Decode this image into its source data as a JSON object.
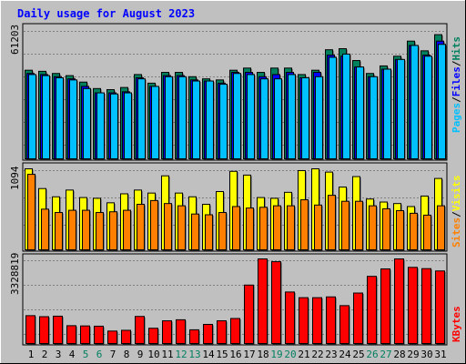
{
  "title": "Daily usage for August 2023",
  "colors": {
    "background": "#c0c0c0",
    "plot": "#c0c0c0",
    "title": "#0000ff",
    "hits": "#00805c",
    "files": "#0000ff",
    "pages": "#00c0ff",
    "visits": "#ffff00",
    "sites": "#ff8000",
    "kbytes": "#ff0000",
    "weekend_label": "#008060",
    "weekday_label": "#000000"
  },
  "chart_data": [
    {
      "type": "bar",
      "panel": "hits-files-pages",
      "ymax_label": "61203",
      "ylim": [
        0,
        61203
      ],
      "categories": [
        "1",
        "2",
        "3",
        "4",
        "5",
        "6",
        "7",
        "8",
        "9",
        "10",
        "11",
        "12",
        "13",
        "14",
        "15",
        "16",
        "17",
        "18",
        "19",
        "20",
        "21",
        "22",
        "23",
        "24",
        "25",
        "26",
        "27",
        "28",
        "29",
        "30",
        "31"
      ],
      "weekend": [
        false,
        false,
        false,
        false,
        true,
        true,
        false,
        false,
        false,
        false,
        false,
        true,
        true,
        false,
        false,
        false,
        false,
        false,
        true,
        true,
        false,
        false,
        false,
        false,
        false,
        true,
        true,
        false,
        false,
        false,
        false
      ],
      "legend": [
        "Pages",
        "/",
        "Files",
        "/",
        "Hits"
      ],
      "series": [
        {
          "name": "Hits",
          "values": [
            41500,
            41000,
            40000,
            39000,
            36000,
            33000,
            32500,
            33500,
            39500,
            35500,
            40500,
            40500,
            38500,
            37500,
            37000,
            41500,
            42500,
            40500,
            42500,
            42500,
            39500,
            41500,
            51000,
            51500,
            46000,
            40000,
            43500,
            48000,
            55000,
            50500,
            58000
          ]
        },
        {
          "name": "Files",
          "values": [
            40000,
            39500,
            38500,
            37500,
            34000,
            31000,
            31000,
            31500,
            38000,
            34000,
            39000,
            39000,
            37000,
            36500,
            35500,
            40500,
            40500,
            38500,
            39500,
            40500,
            38000,
            40500,
            48500,
            48000,
            43000,
            38500,
            42000,
            46500,
            53000,
            48500,
            55000
          ]
        },
        {
          "name": "Pages",
          "values": [
            39500,
            39000,
            38000,
            37000,
            33000,
            31000,
            30500,
            31000,
            37500,
            34000,
            38500,
            38500,
            36500,
            36500,
            35000,
            40000,
            39500,
            37500,
            37500,
            39500,
            38000,
            38500,
            47500,
            49000,
            43000,
            38500,
            42000,
            46500,
            53000,
            48000,
            53500
          ]
        }
      ]
    },
    {
      "type": "bar",
      "panel": "visits-sites",
      "ymax_label": "1094",
      "ylim": [
        0,
        1094
      ],
      "categories": [
        "1",
        "2",
        "3",
        "4",
        "5",
        "6",
        "7",
        "8",
        "9",
        "10",
        "11",
        "12",
        "13",
        "14",
        "15",
        "16",
        "17",
        "18",
        "19",
        "20",
        "21",
        "22",
        "23",
        "24",
        "25",
        "26",
        "27",
        "28",
        "29",
        "30",
        "31"
      ],
      "legend": [
        "Sites",
        "/",
        "Visits"
      ],
      "series": [
        {
          "name": "Visits",
          "values": [
            1094,
            830,
            720,
            810,
            710,
            700,
            640,
            760,
            810,
            770,
            1000,
            770,
            720,
            620,
            790,
            1060,
            1010,
            710,
            700,
            780,
            1070,
            1094,
            1050,
            850,
            990,
            690,
            650,
            630,
            590,
            730,
            965
          ]
        },
        {
          "name": "Sites",
          "values": [
            1020,
            555,
            510,
            540,
            540,
            510,
            520,
            540,
            620,
            670,
            630,
            600,
            490,
            480,
            510,
            590,
            570,
            580,
            600,
            600,
            680,
            610,
            740,
            660,
            660,
            600,
            560,
            535,
            500,
            475,
            600
          ]
        }
      ]
    },
    {
      "type": "bar",
      "panel": "kbytes",
      "ymax_label": "3328819",
      "ylim": [
        0,
        3328819
      ],
      "categories": [
        "1",
        "2",
        "3",
        "4",
        "5",
        "6",
        "7",
        "8",
        "9",
        "10",
        "11",
        "12",
        "13",
        "14",
        "15",
        "16",
        "17",
        "18",
        "19",
        "20",
        "21",
        "22",
        "23",
        "24",
        "25",
        "26",
        "27",
        "28",
        "29",
        "30",
        "31"
      ],
      "legend": [
        "KBytes"
      ],
      "series": [
        {
          "name": "KBytes",
          "values": [
            1120000,
            1080000,
            1100000,
            730000,
            720000,
            710000,
            520000,
            550000,
            1090000,
            630000,
            920000,
            960000,
            570000,
            780000,
            920000,
            1010000,
            2310000,
            3328819,
            3220000,
            2040000,
            1820000,
            1820000,
            1850000,
            1510000,
            2000000,
            2650000,
            2940000,
            3328819,
            3000000,
            2950000,
            2860000
          ]
        }
      ]
    }
  ]
}
